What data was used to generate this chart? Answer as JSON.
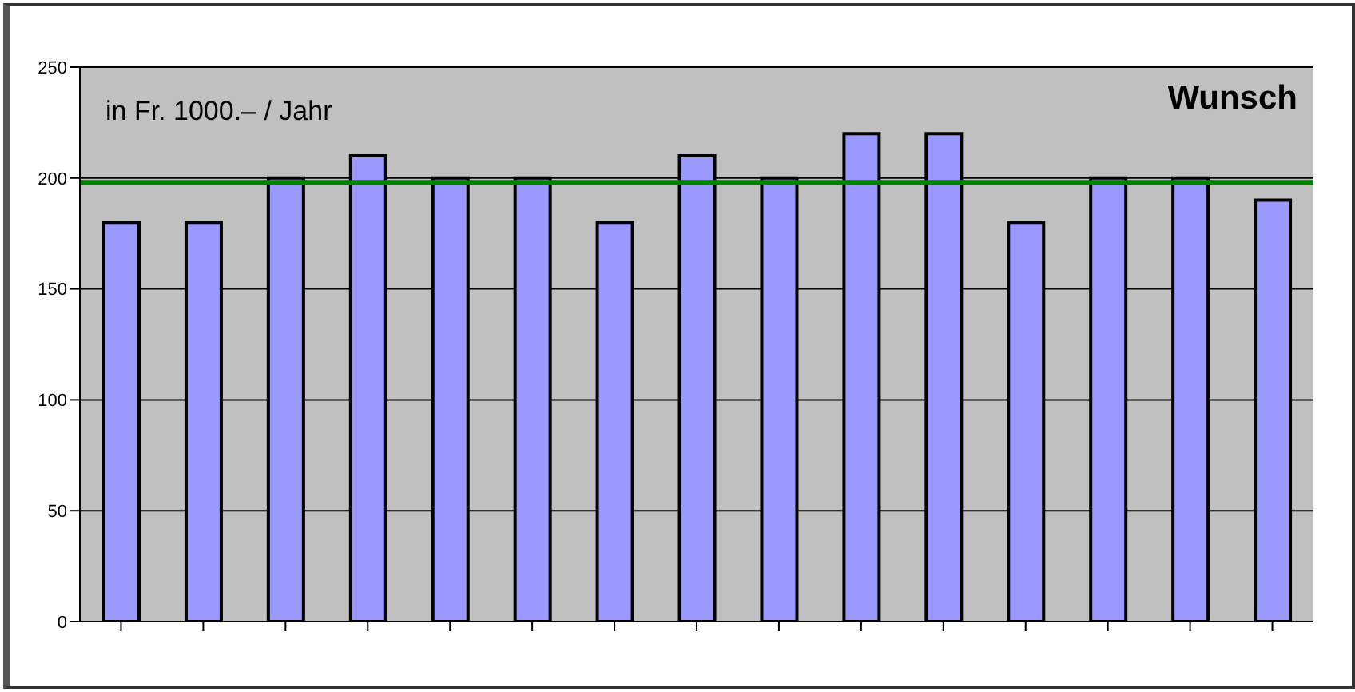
{
  "chart_data": {
    "type": "bar",
    "categories": [
      null,
      null,
      null,
      null,
      null,
      null,
      null,
      null,
      null,
      null,
      null,
      null,
      null,
      null,
      null
    ],
    "values": [
      180,
      180,
      200,
      210,
      200,
      200,
      180,
      210,
      200,
      220,
      220,
      180,
      200,
      200,
      190
    ],
    "color": "#9999ff",
    "ylim": [
      0,
      250
    ],
    "yticks": [
      0,
      50,
      100,
      150,
      200,
      250
    ],
    "grid": "y",
    "ref_lines": [
      {
        "axis": "y",
        "value": 198,
        "color": "#008000"
      }
    ],
    "annotations": [
      "in Fr. 1000.– / Jahr",
      "Wunsch"
    ]
  }
}
